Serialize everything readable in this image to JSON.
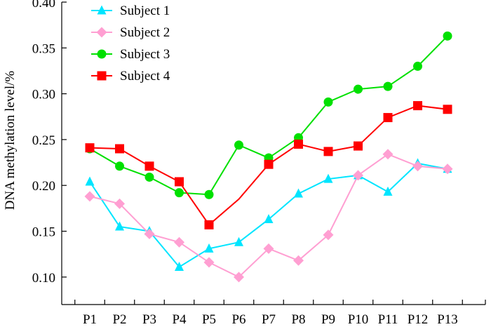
{
  "chart_data": {
    "type": "line",
    "title": "",
    "xlabel": "",
    "ylabel": "DNA methylation level/%",
    "ylim": [
      0.07,
      0.4
    ],
    "yticks": [
      0.1,
      0.15,
      0.2,
      0.25,
      0.3,
      0.35,
      0.4
    ],
    "ytick_labels": [
      "0.10",
      "0.15",
      "0.20",
      "0.25",
      "0.30",
      "0.35",
      "0.40"
    ],
    "categories": [
      "P1",
      "P2",
      "P3",
      "P4",
      "P5",
      "P6",
      "P7",
      "P8",
      "P9",
      "P10",
      "P11",
      "P12",
      "P13"
    ],
    "grid": false,
    "legend_position": "top-left",
    "series": [
      {
        "name": "Subject 1",
        "color": "#00e5ff",
        "marker": "triangle",
        "values": [
          0.204,
          0.155,
          0.15,
          0.111,
          0.131,
          0.138,
          0.163,
          0.191,
          0.207,
          0.211,
          0.193,
          0.224,
          0.218
        ]
      },
      {
        "name": "Subject 2",
        "color": "#ff9fd2",
        "marker": "diamond",
        "values": [
          0.188,
          0.18,
          0.147,
          0.138,
          0.116,
          0.1,
          0.131,
          0.118,
          0.146,
          0.211,
          0.234,
          0.221,
          0.218
        ]
      },
      {
        "name": "Subject 3",
        "color": "#00e000",
        "marker": "circle",
        "values": [
          0.24,
          0.221,
          0.209,
          0.192,
          0.19,
          0.244,
          0.23,
          0.252,
          0.291,
          0.305,
          0.308,
          0.33,
          0.363
        ]
      },
      {
        "name": "Subject 4",
        "color": "#ff0000",
        "marker": "square",
        "values": [
          0.241,
          0.24,
          0.221,
          0.204,
          0.157,
          0.185,
          0.223,
          0.245,
          0.237,
          0.243,
          0.274,
          0.287,
          0.283
        ]
      }
    ],
    "unmarked_points": [
      {
        "series": 3,
        "index": 5
      }
    ]
  }
}
